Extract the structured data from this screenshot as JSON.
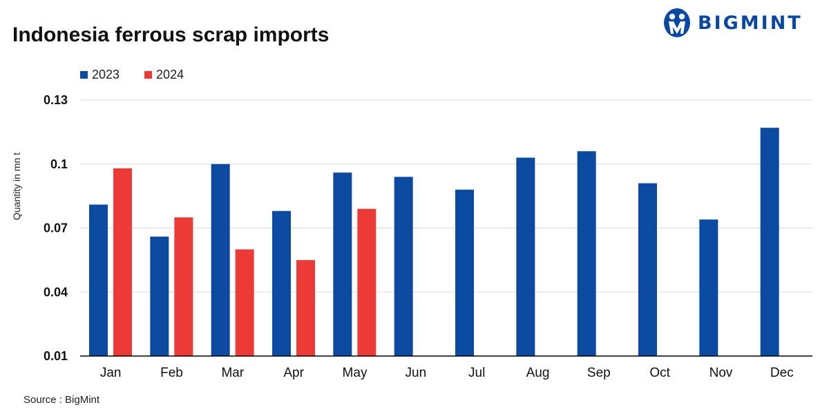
{
  "header": {
    "title": "Indonesia ferrous scrap imports",
    "brand": "BIGMINT"
  },
  "source_note": "Source : BigMint",
  "colors": {
    "series_2023": "#0a4aa0",
    "series_2024": "#ee3a36",
    "grid": "#d9d9d9",
    "axis": "#000000",
    "brand": "#0a49a3"
  },
  "chart_data": {
    "type": "bar",
    "title": "Indonesia ferrous scrap imports",
    "xlabel": "",
    "ylabel": "Quantity in mn t",
    "categories": [
      "Jan",
      "Feb",
      "Mar",
      "Apr",
      "May",
      "Jun",
      "Jul",
      "Aug",
      "Sep",
      "Oct",
      "Nov",
      "Dec"
    ],
    "series": [
      {
        "name": "2023",
        "values": [
          0.081,
          0.066,
          0.1,
          0.078,
          0.096,
          0.094,
          0.088,
          0.103,
          0.106,
          0.091,
          0.074,
          0.117
        ]
      },
      {
        "name": "2024",
        "values": [
          0.098,
          0.075,
          0.06,
          0.055,
          0.079,
          null,
          null,
          null,
          null,
          null,
          null,
          null
        ]
      }
    ],
    "ylim": [
      0.01,
      0.13
    ],
    "yticks": [
      "0.01",
      "0.04",
      "0.07",
      "0.1",
      "0.13"
    ],
    "grid": true,
    "legend_position": "top-left"
  }
}
